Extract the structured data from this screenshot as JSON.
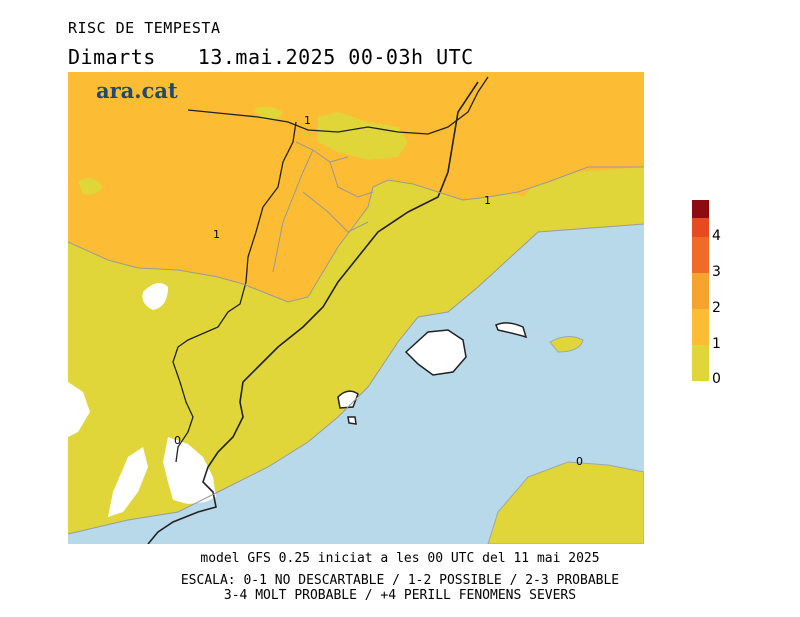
{
  "header": {
    "title": "RISC DE TEMPESTA",
    "day": "Dimarts",
    "datetime": "13.mai.2025 00-03h UTC"
  },
  "brand": "ara.cat",
  "map": {
    "colors": {
      "sea": "#b8d9ea",
      "level_0_1": "#e0d639",
      "level_1_2": "#fcbc33",
      "level_2_3": "#f7a42e",
      "land_white": "#ffffff"
    },
    "contour_labels": [
      "1",
      "1",
      "1",
      "0",
      "0"
    ]
  },
  "legend": {
    "colors": [
      "#e0d639",
      "#fcbc33",
      "#f7a42e",
      "#ef6b27",
      "#e54a21",
      "#8d0c12"
    ],
    "ticks": [
      "0",
      "1",
      "2",
      "3",
      "4"
    ]
  },
  "footer": {
    "model": "model GFS 0.25 iniciat a les 00 UTC del 11 mai 2025",
    "scale1": "ESCALA: 0-1 NO DESCARTABLE / 1-2 POSSIBLE / 2-3 PROBABLE",
    "scale2": "3-4 MOLT PROBABLE / +4 PERILL FENOMENS SEVERS"
  }
}
